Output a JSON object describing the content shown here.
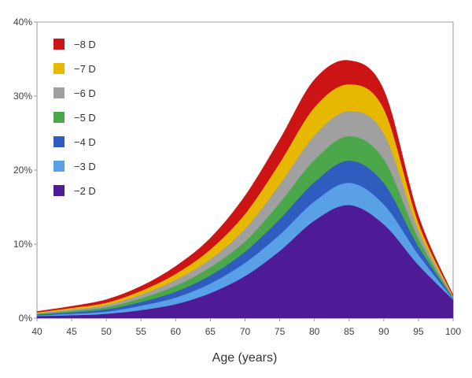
{
  "chart_data": {
    "type": "area",
    "stacked": true,
    "title": "",
    "xlabel": "Age (years)",
    "ylabel": "",
    "xlim": [
      40,
      100
    ],
    "ylim": [
      0,
      40
    ],
    "x_ticks": [
      "40",
      "45",
      "50",
      "55",
      "60",
      "65",
      "70",
      "75",
      "80",
      "85",
      "90",
      "95",
      "100"
    ],
    "y_ticks": [
      "0%",
      "10%",
      "20%",
      "30%",
      "40%"
    ],
    "grid": false,
    "legend_position": "top-left",
    "x": [
      40,
      45,
      50,
      55,
      60,
      65,
      70,
      75,
      80,
      85,
      90,
      95,
      100
    ],
    "series": [
      {
        "name": "−2 D",
        "color": "#4f1a96",
        "values": [
          0.3,
          0.4,
          0.6,
          1.1,
          1.9,
          3.4,
          5.7,
          9.1,
          13.2,
          15.3,
          12.7,
          7.2,
          2.5
        ]
      },
      {
        "name": "−3 D",
        "color": "#5aa0e6",
        "values": [
          0.1,
          0.2,
          0.3,
          0.6,
          0.9,
          1.3,
          1.8,
          2.2,
          2.6,
          3.0,
          2.7,
          1.4,
          0.1
        ]
      },
      {
        "name": "−4 D",
        "color": "#2f5cbf",
        "values": [
          0.1,
          0.2,
          0.3,
          0.5,
          0.8,
          1.1,
          1.5,
          2.1,
          2.6,
          3.0,
          2.9,
          1.1,
          0.1
        ]
      },
      {
        "name": "−5 D",
        "color": "#4aa84a",
        "values": [
          0.1,
          0.2,
          0.3,
          0.5,
          0.8,
          1.1,
          1.4,
          2.2,
          3.0,
          3.3,
          3.2,
          1.1,
          0.1
        ]
      },
      {
        "name": "−6 D",
        "color": "#a0a0a0",
        "values": [
          0.1,
          0.2,
          0.3,
          0.5,
          0.8,
          1.1,
          1.7,
          2.5,
          3.3,
          3.4,
          3.5,
          1.1,
          0.1
        ]
      },
      {
        "name": "−7 D",
        "color": "#e6b800",
        "values": [
          0.1,
          0.2,
          0.3,
          0.5,
          0.8,
          1.3,
          2.0,
          2.9,
          3.8,
          3.6,
          3.3,
          1.0,
          0.1
        ]
      },
      {
        "name": "−8 D",
        "color": "#cc1414",
        "values": [
          0.1,
          0.2,
          0.4,
          0.6,
          1.0,
          1.5,
          2.4,
          3.1,
          3.7,
          3.2,
          2.5,
          0.9,
          0.1
        ]
      }
    ]
  }
}
